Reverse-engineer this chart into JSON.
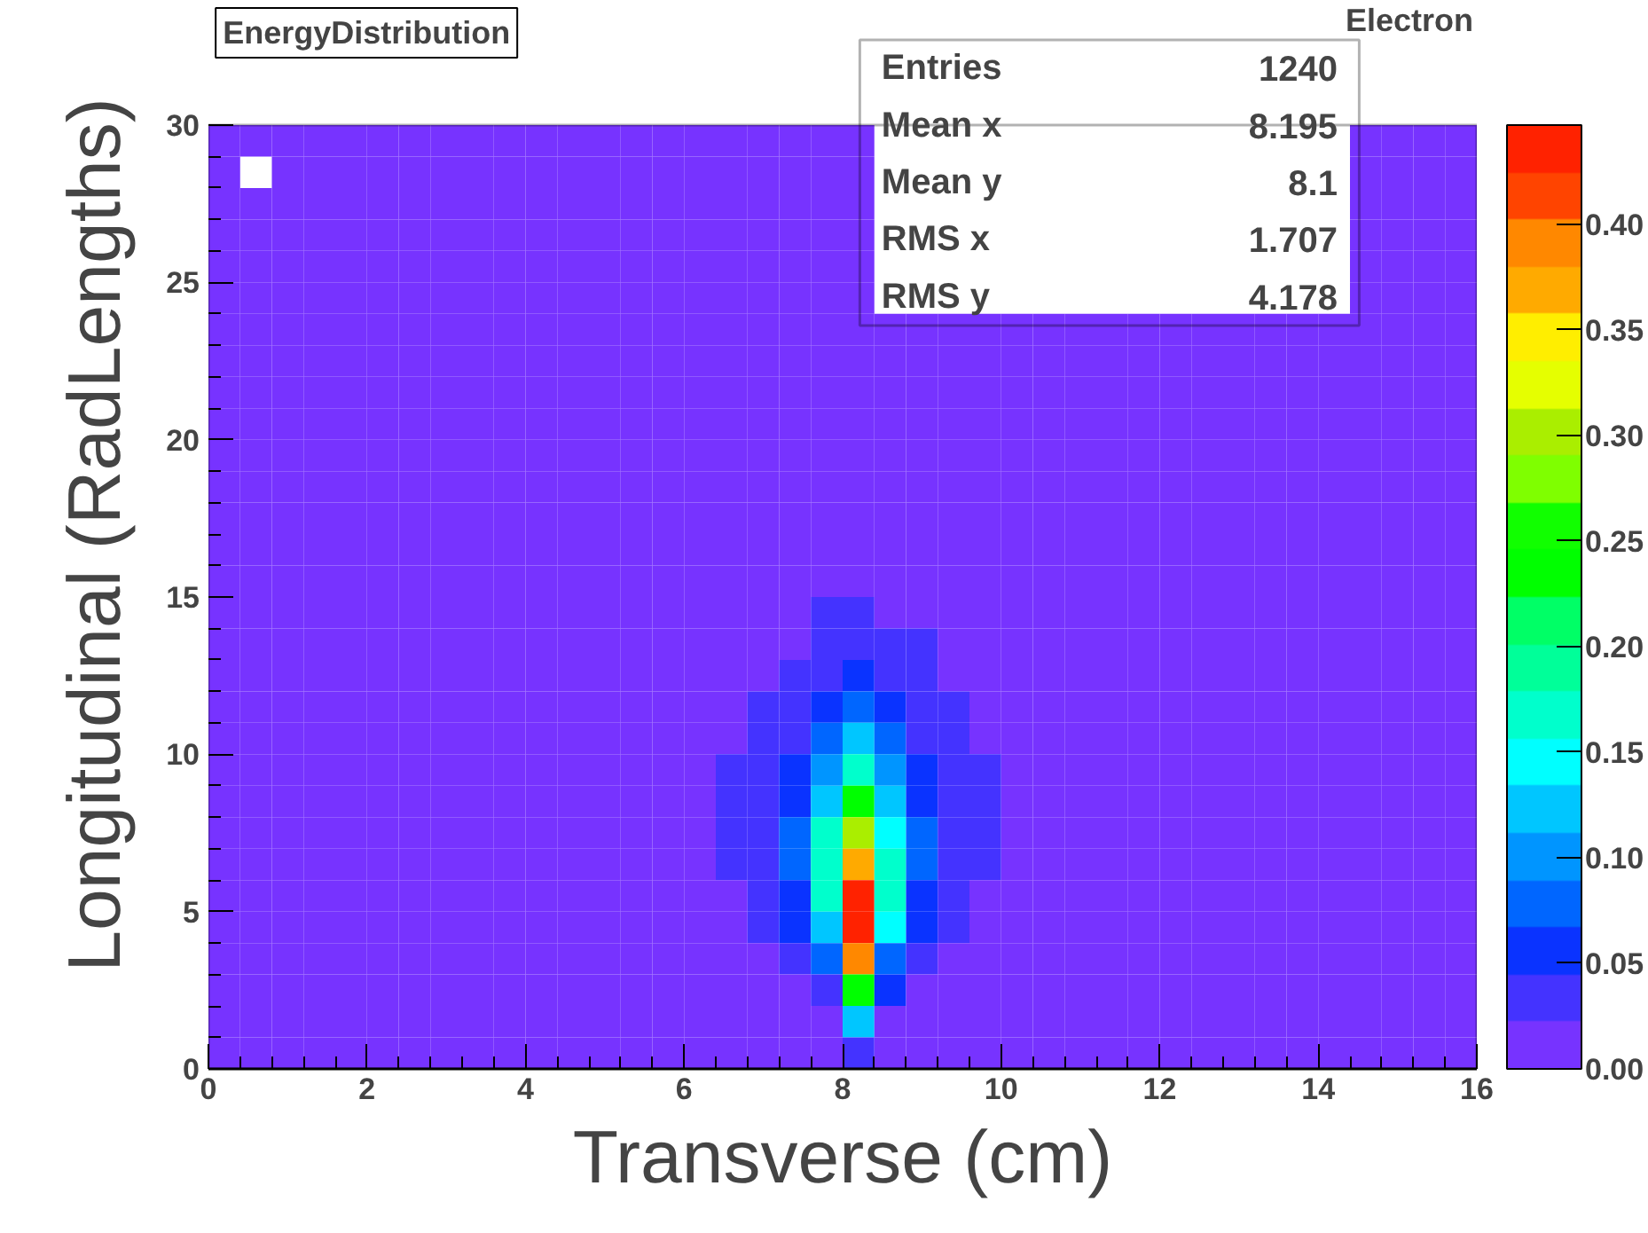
{
  "chart_data": {
    "type": "heatmap",
    "title": "EnergyDistribution",
    "subtitle": "Electron",
    "xlabel": "Transverse (cm)",
    "ylabel": "Longitudinal (RadLengths)",
    "annotations": [
      "Entries 1240",
      "Mean x 8.195",
      "Mean y 8.1",
      "RMS x 1.707",
      "RMS y 4.178"
    ],
    "xlim": [
      0,
      16
    ],
    "ylim": [
      0,
      30
    ],
    "xticks": [
      0,
      2,
      4,
      6,
      8,
      10,
      12,
      14,
      16
    ],
    "yticks": [
      0,
      5,
      10,
      15,
      20,
      25,
      30
    ],
    "clim": [
      0,
      0.447
    ],
    "cticks": [
      {
        "value": 0,
        "label": "0.00"
      },
      {
        "value": 0.05,
        "label": "0.05"
      },
      {
        "value": 0.1,
        "label": "0.10"
      },
      {
        "value": 0.15,
        "label": "0.15"
      },
      {
        "value": 0.2,
        "label": "0.20"
      },
      {
        "value": 0.25,
        "label": "0.25"
      },
      {
        "value": 0.3,
        "label": "0.30"
      },
      {
        "value": 0.35,
        "label": "0.35"
      },
      {
        "value": 0.4,
        "label": "0.40"
      }
    ],
    "colors": [
      "#7733ff",
      "#4433ff",
      "#0a33ff",
      "#0066ff",
      "#0095ff",
      "#00c6ff",
      "#00ffff",
      "#00ffcc",
      "#00ff99",
      "#00ff66",
      "#00ff00",
      "#11ff00",
      "#7fff00",
      "#aaee00",
      "#e5ff00",
      "#ffee00",
      "#ffaa00",
      "#ff8800",
      "#ff4400",
      "#ff2200"
    ],
    "cells": [
      [
        0,
        0,
        0,
        0,
        0,
        0,
        0,
        0,
        0,
        0,
        0,
        0,
        0,
        0,
        0,
        0,
        0,
        0,
        0,
        0,
        0,
        null,
        null,
        null,
        null,
        null,
        null,
        null,
        null,
        null,
        null,
        null,
        null,
        null,
        null,
        null,
        0,
        0,
        0,
        0
      ],
      [
        0,
        null,
        0,
        0,
        0,
        0,
        0,
        0,
        0,
        0,
        0,
        0,
        0,
        0,
        0,
        0,
        0,
        0,
        0,
        0,
        0,
        null,
        null,
        null,
        null,
        null,
        null,
        null,
        null,
        null,
        null,
        null,
        null,
        null,
        null,
        null,
        0,
        0,
        0,
        0
      ],
      [
        0,
        0,
        0,
        0,
        0,
        0,
        0,
        0,
        0,
        0,
        0,
        0,
        0,
        0,
        0,
        0,
        0,
        0,
        0,
        0,
        0,
        null,
        null,
        null,
        null,
        null,
        null,
        null,
        null,
        null,
        null,
        null,
        null,
        null,
        null,
        null,
        0,
        0,
        0,
        0
      ],
      [
        0,
        0,
        0,
        0,
        0,
        0,
        0,
        0,
        0,
        0,
        0,
        0,
        0,
        0,
        0,
        0,
        0,
        0,
        0,
        0,
        0,
        null,
        null,
        null,
        null,
        null,
        null,
        null,
        null,
        null,
        null,
        null,
        null,
        null,
        null,
        null,
        0,
        0,
        0,
        0
      ],
      [
        0,
        0,
        0,
        0,
        0,
        0,
        0,
        0,
        0,
        0,
        0,
        0,
        0,
        0,
        0,
        0,
        0,
        0,
        0,
        0,
        0,
        null,
        null,
        null,
        null,
        null,
        null,
        null,
        null,
        null,
        null,
        null,
        null,
        null,
        null,
        null,
        0,
        0,
        0,
        0
      ],
      [
        0,
        0,
        0,
        0,
        0,
        0,
        0,
        0,
        0,
        0,
        0,
        0,
        0,
        0,
        0,
        0,
        0,
        0,
        0,
        0,
        0,
        null,
        null,
        null,
        null,
        null,
        null,
        null,
        null,
        null,
        null,
        null,
        null,
        null,
        null,
        null,
        0,
        0,
        0,
        0
      ],
      [
        0,
        0,
        0,
        0,
        0,
        0,
        0,
        0,
        0,
        0,
        0,
        0,
        0,
        0,
        0,
        0,
        0,
        0,
        0,
        0,
        0,
        0,
        0,
        0,
        0,
        0,
        0,
        0,
        0,
        0,
        0,
        0,
        0,
        0,
        0,
        0,
        0,
        0,
        0,
        0
      ],
      [
        0,
        0,
        0,
        0,
        0,
        0,
        0,
        0,
        0,
        0,
        0,
        0,
        0,
        0,
        0,
        0,
        0,
        0,
        0,
        0,
        0,
        0,
        0,
        0,
        0,
        0,
        0,
        0,
        0,
        0,
        0,
        0,
        0,
        0,
        0,
        0,
        0,
        0,
        0,
        0
      ],
      [
        0,
        0,
        0,
        0,
        0,
        0,
        0,
        0,
        0,
        0,
        0,
        0,
        0,
        0,
        0,
        0,
        0,
        0,
        0,
        0,
        0,
        0,
        0,
        0,
        0,
        0,
        0,
        0,
        0,
        0,
        0,
        0,
        0,
        0,
        0,
        0,
        0,
        0,
        0,
        0
      ],
      [
        0,
        0,
        0,
        0,
        0,
        0,
        0,
        0,
        0,
        0,
        0,
        0,
        0,
        0,
        0,
        0,
        0,
        0,
        0,
        0,
        0,
        0,
        0,
        0,
        0,
        0,
        0,
        0,
        0,
        0,
        0,
        0,
        0,
        0,
        0,
        0,
        0,
        0,
        0,
        0
      ],
      [
        0,
        0,
        0,
        0,
        0,
        0,
        0,
        0,
        0,
        0,
        0,
        0,
        0,
        0,
        0,
        0,
        0,
        0,
        0,
        0,
        0,
        0,
        0,
        0,
        0,
        0,
        0,
        0,
        0,
        0,
        0,
        0,
        0,
        0,
        0,
        0,
        0,
        0,
        0,
        0
      ],
      [
        0,
        0,
        0,
        0,
        0,
        0,
        0,
        0,
        0,
        0,
        0,
        0,
        0,
        0,
        0,
        0,
        0,
        0,
        0,
        0,
        0,
        0,
        0,
        0,
        0,
        0,
        0,
        0,
        0,
        0,
        0,
        0,
        0,
        0,
        0,
        0,
        0,
        0,
        0,
        0
      ],
      [
        0,
        0,
        0,
        0,
        0,
        0,
        0,
        0,
        0,
        0,
        0,
        0,
        0,
        0,
        0,
        0,
        0,
        0,
        0,
        0,
        0,
        0,
        0,
        0,
        0,
        0,
        0,
        0,
        0,
        0,
        0,
        0,
        0,
        0,
        0,
        0,
        0,
        0,
        0,
        0
      ],
      [
        0,
        0,
        0,
        0,
        0,
        0,
        0,
        0,
        0,
        0,
        0,
        0,
        0,
        0,
        0,
        0,
        0,
        0,
        0,
        0,
        0,
        0,
        0,
        0,
        0,
        0,
        0,
        0,
        0,
        0,
        0,
        0,
        0,
        0,
        0,
        0,
        0,
        0,
        0,
        0
      ],
      [
        0,
        0,
        0,
        0,
        0,
        0,
        0,
        0,
        0,
        0,
        0,
        0,
        0,
        0,
        0,
        0,
        0,
        0,
        0,
        0,
        0,
        0,
        0,
        0,
        0,
        0,
        0,
        0,
        0,
        0,
        0,
        0,
        0,
        0,
        0,
        0,
        0,
        0,
        0,
        0
      ],
      [
        0,
        0,
        0,
        0,
        0,
        0,
        0,
        0,
        0,
        0,
        0,
        0,
        0,
        0,
        0,
        0,
        0,
        0,
        0,
        0.035,
        0.035,
        0,
        0,
        0,
        0,
        0,
        0,
        0,
        0,
        0,
        0,
        0,
        0,
        0,
        0,
        0,
        0,
        0,
        0,
        0
      ],
      [
        0,
        0,
        0,
        0,
        0,
        0,
        0,
        0,
        0,
        0,
        0,
        0,
        0,
        0,
        0,
        0,
        0,
        0,
        0,
        0.035,
        0.035,
        0.035,
        0.035,
        0,
        0,
        0,
        0,
        0,
        0,
        0,
        0,
        0,
        0,
        0,
        0,
        0,
        0,
        0,
        0,
        0
      ],
      [
        0,
        0,
        0,
        0,
        0,
        0,
        0,
        0,
        0,
        0,
        0,
        0,
        0,
        0,
        0,
        0,
        0,
        0,
        0.035,
        0.035,
        0.055,
        0.035,
        0.035,
        0,
        0,
        0,
        0,
        0,
        0,
        0,
        0,
        0,
        0,
        0,
        0,
        0,
        0,
        0,
        0,
        0
      ],
      [
        0,
        0,
        0,
        0,
        0,
        0,
        0,
        0,
        0,
        0,
        0,
        0,
        0,
        0,
        0,
        0,
        0,
        0.035,
        0.035,
        0.055,
        0.08,
        0.055,
        0.035,
        0.035,
        0,
        0,
        0,
        0,
        0,
        0,
        0,
        0,
        0,
        0,
        0,
        0,
        0,
        0,
        0,
        0
      ],
      [
        0,
        0,
        0,
        0,
        0,
        0,
        0,
        0,
        0,
        0,
        0,
        0,
        0,
        0,
        0,
        0,
        0,
        0.035,
        0.035,
        0.08,
        0.12,
        0.08,
        0.035,
        0.035,
        0,
        0,
        0,
        0,
        0,
        0,
        0,
        0,
        0,
        0,
        0,
        0,
        0,
        0,
        0,
        0
      ],
      [
        0,
        0,
        0,
        0,
        0,
        0,
        0,
        0,
        0,
        0,
        0,
        0,
        0,
        0,
        0,
        0,
        0.035,
        0.035,
        0.055,
        0.1,
        0.17,
        0.1,
        0.055,
        0.035,
        0.035,
        0,
        0,
        0,
        0,
        0,
        0,
        0,
        0,
        0,
        0,
        0,
        0,
        0,
        0,
        0
      ],
      [
        0,
        0,
        0,
        0,
        0,
        0,
        0,
        0,
        0,
        0,
        0,
        0,
        0,
        0,
        0,
        0,
        0.035,
        0.035,
        0.055,
        0.12,
        0.235,
        0.12,
        0.055,
        0.035,
        0.035,
        0,
        0,
        0,
        0,
        0,
        0,
        0,
        0,
        0,
        0,
        0,
        0,
        0,
        0,
        0
      ],
      [
        0,
        0,
        0,
        0,
        0,
        0,
        0,
        0,
        0,
        0,
        0,
        0,
        0,
        0,
        0,
        0,
        0.035,
        0.035,
        0.08,
        0.17,
        0.3,
        0.145,
        0.08,
        0.035,
        0.035,
        0,
        0,
        0,
        0,
        0,
        0,
        0,
        0,
        0,
        0,
        0,
        0,
        0,
        0,
        0
      ],
      [
        0,
        0,
        0,
        0,
        0,
        0,
        0,
        0,
        0,
        0,
        0,
        0,
        0,
        0,
        0,
        0,
        0.035,
        0.035,
        0.08,
        0.17,
        0.37,
        0.17,
        0.08,
        0.035,
        0.035,
        0,
        0,
        0,
        0,
        0,
        0,
        0,
        0,
        0,
        0,
        0,
        0,
        0,
        0,
        0
      ],
      [
        0,
        0,
        0,
        0,
        0,
        0,
        0,
        0,
        0,
        0,
        0,
        0,
        0,
        0,
        0,
        0,
        0,
        0.035,
        0.055,
        0.17,
        0.435,
        0.17,
        0.055,
        0.035,
        0,
        0,
        0,
        0,
        0,
        0,
        0,
        0,
        0,
        0,
        0,
        0,
        0,
        0,
        0,
        0
      ],
      [
        0,
        0,
        0,
        0,
        0,
        0,
        0,
        0,
        0,
        0,
        0,
        0,
        0,
        0,
        0,
        0,
        0,
        0.035,
        0.055,
        0.12,
        0.435,
        0.145,
        0.055,
        0.035,
        0,
        0,
        0,
        0,
        0,
        0,
        0,
        0,
        0,
        0,
        0,
        0,
        0,
        0,
        0,
        0
      ],
      [
        0,
        0,
        0,
        0,
        0,
        0,
        0,
        0,
        0,
        0,
        0,
        0,
        0,
        0,
        0,
        0,
        0,
        0,
        0.035,
        0.08,
        0.39,
        0.08,
        0.035,
        0,
        0,
        0,
        0,
        0,
        0,
        0,
        0,
        0,
        0,
        0,
        0,
        0,
        0,
        0,
        0,
        0
      ],
      [
        0,
        0,
        0,
        0,
        0,
        0,
        0,
        0,
        0,
        0,
        0,
        0,
        0,
        0,
        0,
        0,
        0,
        0,
        0,
        0.035,
        0.235,
        0.055,
        0,
        0,
        0,
        0,
        0,
        0,
        0,
        0,
        0,
        0,
        0,
        0,
        0,
        0,
        0,
        0,
        0,
        0
      ],
      [
        0,
        0,
        0,
        0,
        0,
        0,
        0,
        0,
        0,
        0,
        0,
        0,
        0,
        0,
        0,
        0,
        0,
        0,
        0,
        0,
        0.12,
        0,
        0,
        0,
        0,
        0,
        0,
        0,
        0,
        0,
        0,
        0,
        0,
        0,
        0,
        0,
        0,
        0,
        0,
        0
      ],
      [
        0,
        0,
        0,
        0,
        0,
        0,
        0,
        0,
        0,
        0,
        0,
        0,
        0,
        0,
        0,
        0,
        0,
        0,
        0,
        0,
        0.035,
        0,
        0,
        0,
        0,
        0,
        0,
        0,
        0,
        0,
        0,
        0,
        0,
        0,
        0,
        0,
        0,
        0,
        0,
        0
      ]
    ]
  }
}
